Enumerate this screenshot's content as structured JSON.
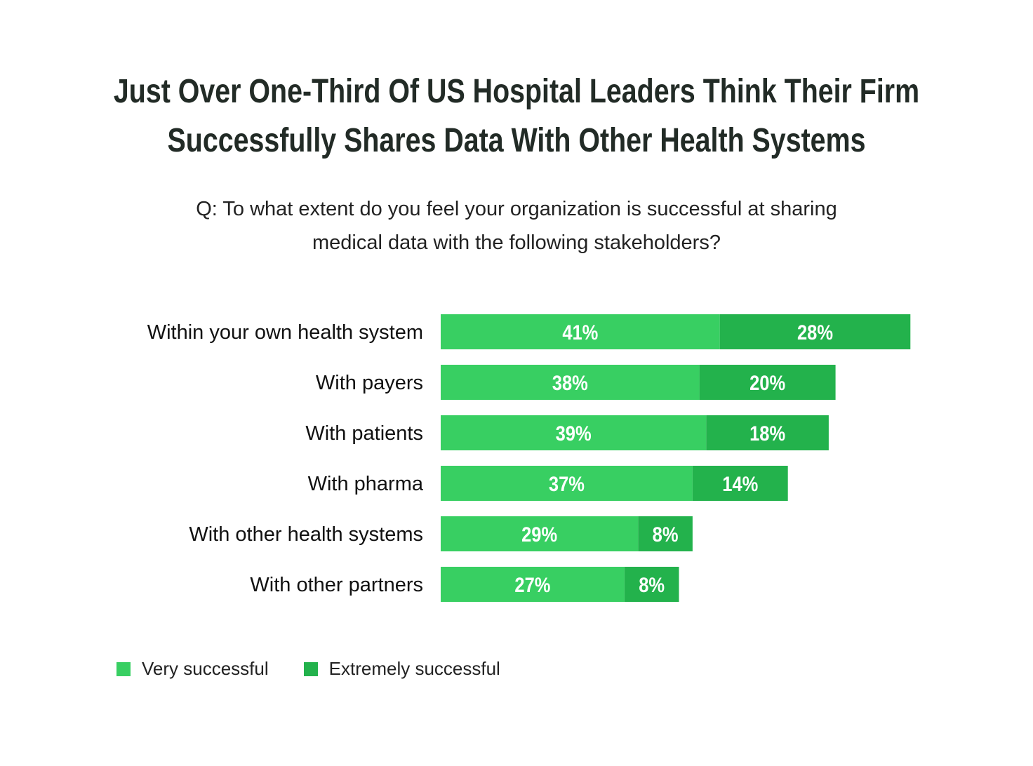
{
  "title_lines": [
    "Just Over One-Third Of US Hospital Leaders Think Their Firm",
    "Successfully Shares Data With Other Health Systems"
  ],
  "subtitle_lines": [
    "Q: To what extent do you feel your organization is successful at sharing",
    "medical data with the following stakeholders?"
  ],
  "chart_data": {
    "type": "bar",
    "orientation": "horizontal",
    "stacked": true,
    "categories": [
      "Within your own health system",
      "With payers",
      "With patients",
      "With pharma",
      "With other health systems",
      "With other partners"
    ],
    "series": [
      {
        "name": "Very successful",
        "color": "#38cf62",
        "values": [
          41,
          38,
          39,
          37,
          29,
          27
        ]
      },
      {
        "name": "Extremely successful",
        "color": "#23b24c",
        "values": [
          28,
          20,
          18,
          14,
          8,
          8
        ]
      }
    ],
    "value_format": "percent",
    "legend_placement": "bottom-left",
    "grid": false
  }
}
